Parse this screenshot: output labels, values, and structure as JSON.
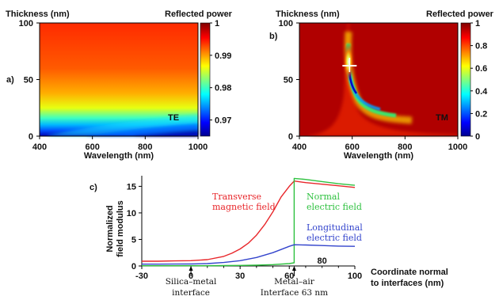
{
  "chart_data": [
    {
      "id": "a",
      "type": "heatmap",
      "panel_label": "a)",
      "ylabel": "Thickness (nm)",
      "xlabel": "Wavelength (nm)",
      "colorbar_title": "Reflected power",
      "xlim": [
        400,
        1000
      ],
      "ylim": [
        0,
        100
      ],
      "xticks": [
        "400",
        "600",
        "800",
        "1000"
      ],
      "yticks": [
        "0",
        "50",
        "100"
      ],
      "colorbar_range": [
        0.965,
        1.0
      ],
      "colorbar_ticks": [
        "1",
        "0.99",
        "0.98",
        "0.97"
      ],
      "colorbar_tick_values": [
        1.0,
        0.99,
        0.98,
        0.97
      ],
      "annotation": "TE"
    },
    {
      "id": "b",
      "type": "heatmap",
      "panel_label": "b)",
      "ylabel": "Thickness (nm)",
      "xlabel": "Wavelength (nm)",
      "colorbar_title": "Reflected power",
      "xlim": [
        400,
        1000
      ],
      "ylim": [
        0,
        100
      ],
      "xticks": [
        "400",
        "600",
        "800",
        "1000"
      ],
      "yticks": [
        "0",
        "50",
        "100"
      ],
      "colorbar_range": [
        0,
        1
      ],
      "colorbar_ticks": [
        "1",
        "0.8",
        "0.6",
        "0.4",
        "0.2",
        "0"
      ],
      "colorbar_tick_values": [
        1.0,
        0.8,
        0.6,
        0.4,
        0.2,
        0.0
      ],
      "annotation": "TM",
      "marker": {
        "wavelength": 590,
        "thickness": 65
      }
    },
    {
      "id": "c",
      "type": "line",
      "panel_label": "c)",
      "ylabel": "Normalized field modulus",
      "ylabel_lines": [
        "Normalized",
        "field modulus"
      ],
      "xlabel_lines": [
        "Coordinate normal",
        "to interfaces (nm)"
      ],
      "xlim": [
        -30,
        100
      ],
      "ylim": [
        0,
        17
      ],
      "xticks": [
        "-30",
        "0",
        "30",
        "60",
        "100"
      ],
      "xtick_values": [
        -30,
        0,
        30,
        60,
        100
      ],
      "minor_xticks": [
        10,
        20,
        40,
        50,
        70,
        80,
        90
      ],
      "xticks_extra": [
        {
          "x": 80,
          "label": "80"
        }
      ],
      "yticks": [
        "0",
        "5",
        "10",
        "15"
      ],
      "ytick_values": [
        0,
        5,
        10,
        15
      ],
      "series": [
        {
          "name": "Transverse magnetic field",
          "label_lines": [
            "Transverse",
            "magnetic field"
          ],
          "color": "#e8262a",
          "x": [
            -30,
            -20,
            -10,
            0,
            10,
            20,
            25,
            30,
            35,
            40,
            45,
            50,
            55,
            60,
            63,
            63,
            70,
            80,
            90,
            100
          ],
          "y": [
            0.9,
            0.9,
            0.95,
            1.0,
            1.2,
            1.8,
            2.4,
            3.2,
            4.3,
            5.8,
            7.8,
            10.2,
            13.0,
            15.0,
            16.0,
            16.0,
            15.7,
            15.4,
            15.1,
            14.8
          ]
        },
        {
          "name": "Normal electric field",
          "label_lines": [
            "Normal",
            "electric field"
          ],
          "color": "#2ec13f",
          "x": [
            -30,
            -20,
            -10,
            0,
            10,
            20,
            30,
            40,
            50,
            60,
            63,
            63,
            70,
            80,
            90,
            100
          ],
          "y": [
            0.05,
            0.05,
            0.05,
            0.05,
            0.05,
            0.07,
            0.1,
            0.15,
            0.25,
            0.45,
            0.6,
            16.5,
            16.3,
            15.9,
            15.5,
            15.2
          ]
        },
        {
          "name": "Longitudinal electric field",
          "label_lines": [
            "Longitudinal",
            "electric field"
          ],
          "color": "#3344cc",
          "x": [
            -30,
            -20,
            -10,
            0,
            10,
            20,
            30,
            40,
            50,
            55,
            60,
            63,
            70,
            80,
            90,
            100
          ],
          "y": [
            0.35,
            0.35,
            0.36,
            0.38,
            0.45,
            0.65,
            1.0,
            1.6,
            2.5,
            3.1,
            3.7,
            4.0,
            3.95,
            3.85,
            3.75,
            3.7
          ]
        }
      ],
      "annotations": [
        {
          "x": 0,
          "lines": [
            "Silica–metal",
            "interface"
          ]
        },
        {
          "x": 63,
          "lines": [
            "Metal–air",
            "Interface  63 nm"
          ]
        }
      ]
    }
  ]
}
